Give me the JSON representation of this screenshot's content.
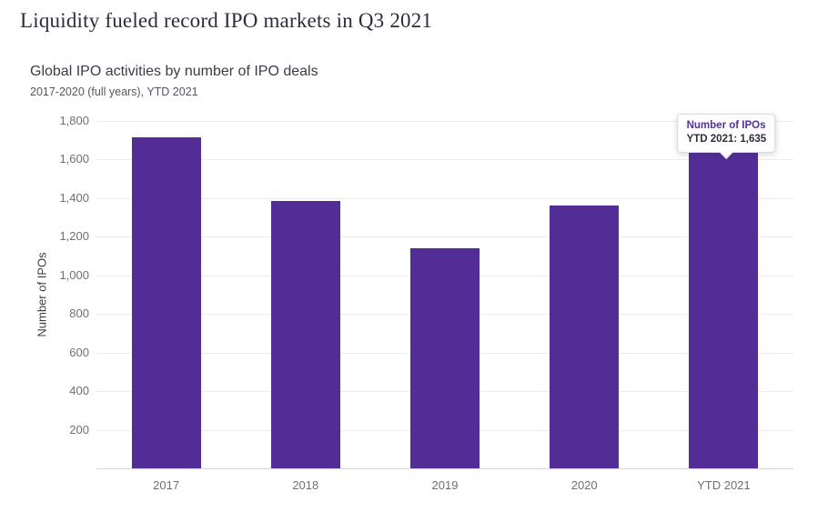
{
  "page": {
    "title": "Liquidity fueled record IPO markets in Q3 2021"
  },
  "chart_data": {
    "type": "bar",
    "title": "Global IPO activities by number of IPO deals",
    "subtitle": "2017-2020 (full years), YTD 2021",
    "categories": [
      "2017",
      "2018",
      "2019",
      "2020",
      "YTD 2021"
    ],
    "values": [
      1715,
      1383,
      1142,
      1363,
      1635
    ],
    "xlabel": "",
    "ylabel": "Number of IPOs",
    "ylim": [
      0,
      1800
    ],
    "ytick_step": 200,
    "grid": true,
    "legend": "none",
    "bar_color": "#522d96",
    "tooltip": {
      "line1": "Number of IPOs",
      "line2": "YTD 2021: 1,635",
      "target_category": "YTD 2021",
      "value": 1635
    }
  },
  "colors": {
    "bar": "#522d96",
    "title_text": "#2c2c3e",
    "axis_text": "#6f6f79",
    "gridline": "#ececef",
    "tooltip_accent": "#52309c"
  }
}
